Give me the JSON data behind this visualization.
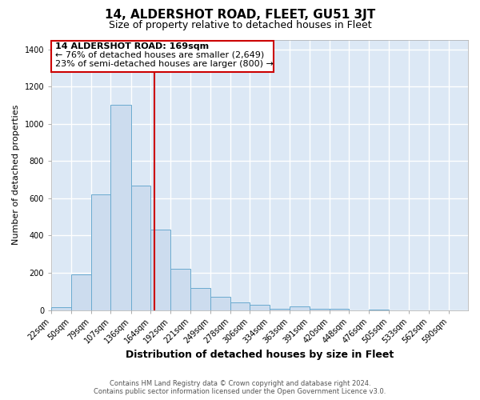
{
  "title1": "14, ALDERSHOT ROAD, FLEET, GU51 3JT",
  "title2": "Size of property relative to detached houses in Fleet",
  "xlabel": "Distribution of detached houses by size in Fleet",
  "ylabel": "Number of detached properties",
  "bar_color": "#ccdcee",
  "bar_edge_color": "#6aaacf",
  "plot_bg_color": "#dce8f5",
  "fig_bg_color": "#ffffff",
  "grid_color": "#ffffff",
  "bin_edges": [
    22,
    50,
    79,
    107,
    136,
    164,
    192,
    221,
    249,
    278,
    306,
    334,
    363,
    391,
    420,
    448,
    476,
    505,
    533,
    562,
    590
  ],
  "bar_heights": [
    15,
    190,
    620,
    1100,
    670,
    430,
    220,
    120,
    70,
    40,
    30,
    5,
    20,
    5,
    5,
    0,
    2,
    0,
    0,
    0
  ],
  "property_size": 169,
  "vline_color": "#cc0000",
  "annotation_line1": "14 ALDERSHOT ROAD: 169sqm",
  "annotation_line2": "← 76% of detached houses are smaller (2,649)",
  "annotation_line3": "23% of semi-detached houses are larger (800) →",
  "annotation_border_color": "#cc0000",
  "ylim_max": 1450,
  "yticks": [
    0,
    200,
    400,
    600,
    800,
    1000,
    1200,
    1400
  ],
  "footer1": "Contains HM Land Registry data © Crown copyright and database right 2024.",
  "footer2": "Contains public sector information licensed under the Open Government Licence v3.0.",
  "title1_fontsize": 11,
  "title2_fontsize": 9,
  "xlabel_fontsize": 9,
  "ylabel_fontsize": 8,
  "tick_fontsize": 7,
  "annotation_fontsize": 8,
  "footer_fontsize": 6
}
